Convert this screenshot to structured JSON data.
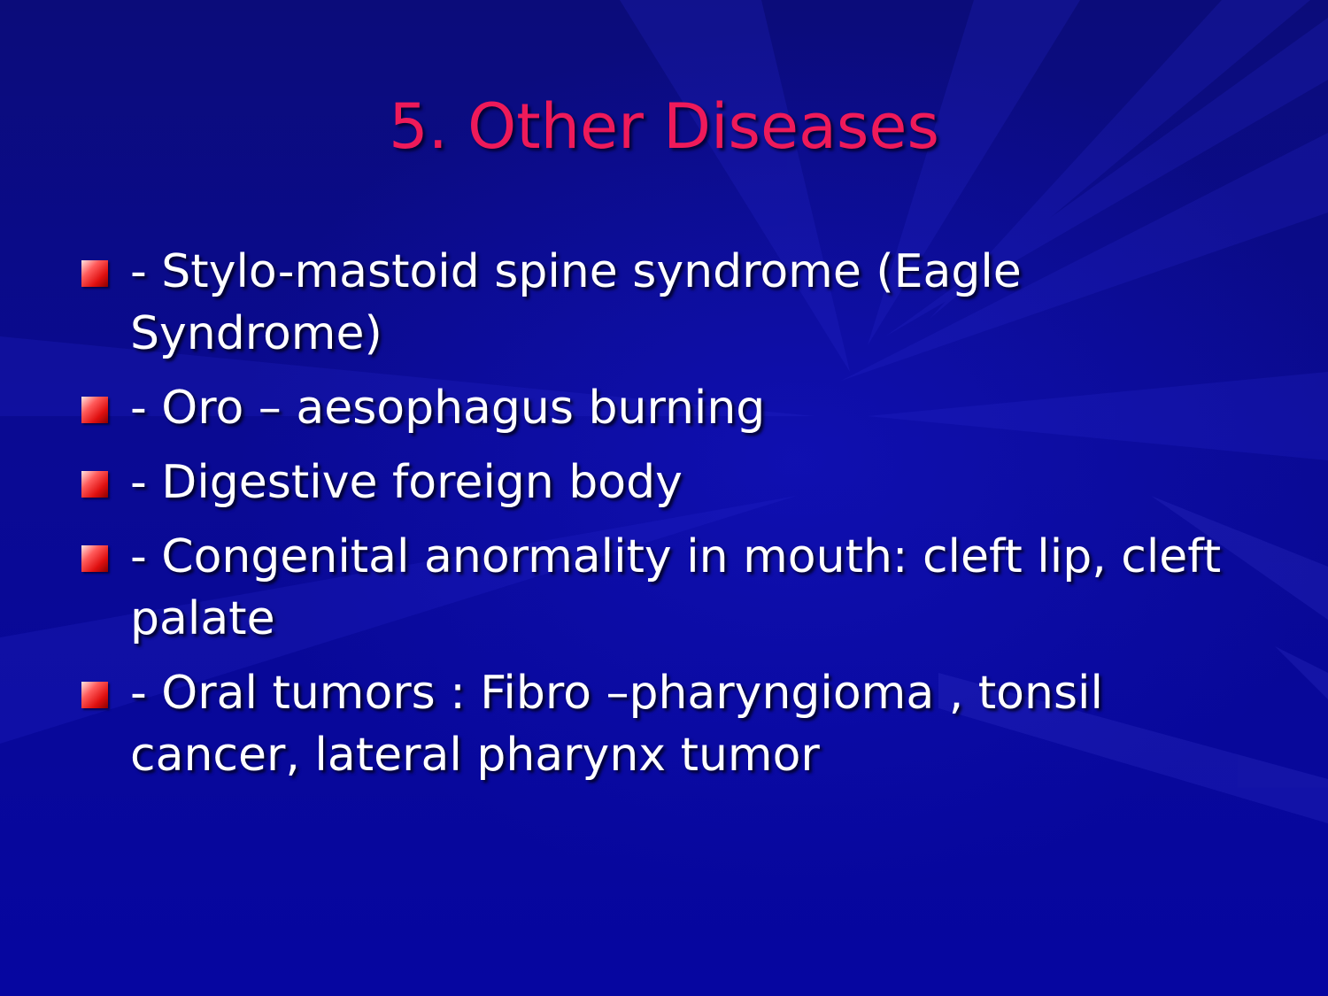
{
  "slide": {
    "title": "5. Other Diseases",
    "bullets": [
      {
        "text": "- Stylo-mastoid spine syndrome (Eagle Syndrome)"
      },
      {
        "text": "- Oro – aesophagus burning"
      },
      {
        "text": "- Digestive foreign body"
      },
      {
        "text": "- Congenital anormality in mouth: cleft lip, cleft palate"
      },
      {
        "text": "- Oral tumors : Fibro –pharyngioma , tonsil cancer, lateral pharynx tumor"
      }
    ]
  },
  "colors": {
    "background": "#07078f",
    "title": "#ee1a5a",
    "text": "#ffffff",
    "bullet": "#e01010"
  }
}
